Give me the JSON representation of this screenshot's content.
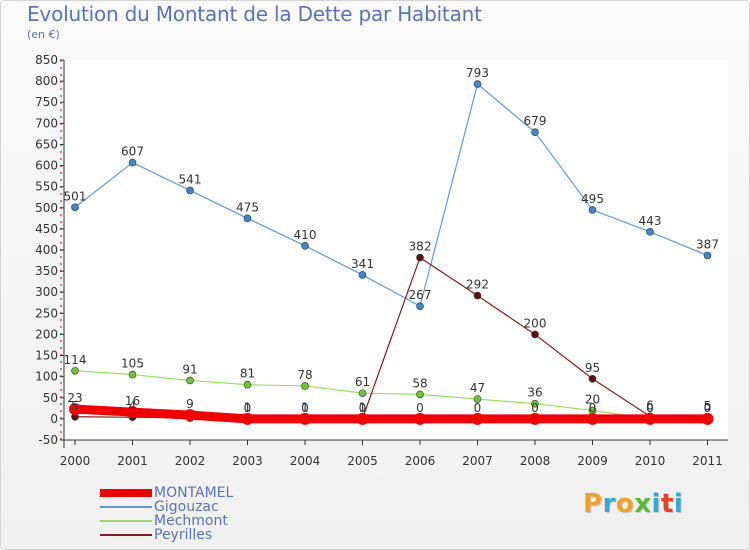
{
  "header": {
    "title": "Evolution du Montant de la Dette par Habitant",
    "subtitle": "(en €)"
  },
  "logo": {
    "text": "Proxiti",
    "colors": [
      "#f0a12a",
      "#3aa6d8",
      "#f0a12a",
      "#5aba3a",
      "#3aa6d8",
      "#e8402a",
      "#3aa6d8"
    ]
  },
  "chart_data": {
    "type": "line",
    "title": "Evolution du Montant de la Dette par Habitant",
    "ylabel": "(en €)",
    "xlabel": "",
    "x": [
      "2000",
      "2001",
      "2002",
      "2003",
      "2004",
      "2005",
      "2006",
      "2007",
      "2008",
      "2009",
      "2010",
      "2011"
    ],
    "ylim": [
      -50,
      850
    ],
    "yticks": [
      -50,
      0,
      50,
      100,
      150,
      200,
      250,
      300,
      350,
      400,
      450,
      500,
      550,
      600,
      650,
      700,
      750,
      800,
      850
    ],
    "grid": false,
    "legend_position": "bottom-left",
    "series": [
      {
        "name": "MONTAMEL",
        "color": "#ee0000",
        "values": [
          23,
          16,
          9,
          0,
          0,
          0,
          0,
          0,
          0,
          0,
          0,
          0
        ]
      },
      {
        "name": "Gigouzac",
        "color": "#6699cc",
        "values": [
          501,
          607,
          541,
          475,
          410,
          341,
          267,
          793,
          679,
          495,
          443,
          387
        ]
      },
      {
        "name": "Mechmont",
        "color": "#99dd66",
        "values": [
          114,
          105,
          91,
          81,
          78,
          61,
          58,
          47,
          36,
          20,
          0,
          0
        ]
      },
      {
        "name": "Peyrilles",
        "color": "#7a1f1f",
        "values": [
          5,
          4,
          2,
          1,
          1,
          1,
          382,
          292,
          200,
          95,
          6,
          5
        ]
      }
    ],
    "data_labels": {
      "MONTAMEL": [
        "23",
        "16",
        "9",
        "0",
        "0",
        "0",
        "0",
        "0",
        "0",
        "0",
        "0",
        "0"
      ],
      "Gigouzac": [
        "501",
        "607",
        "541",
        "475",
        "410",
        "341",
        "267",
        "793",
        "679",
        "495",
        "443",
        "387"
      ],
      "Mechmont": [
        "114",
        "105",
        "91",
        "81",
        "78",
        "61",
        "58",
        "47",
        "36",
        "20",
        "0",
        "0"
      ],
      "Peyrilles": [
        "5",
        "4",
        "",
        "1",
        "1",
        "1",
        "382",
        "292",
        "200",
        "95",
        "6",
        "5"
      ]
    }
  }
}
